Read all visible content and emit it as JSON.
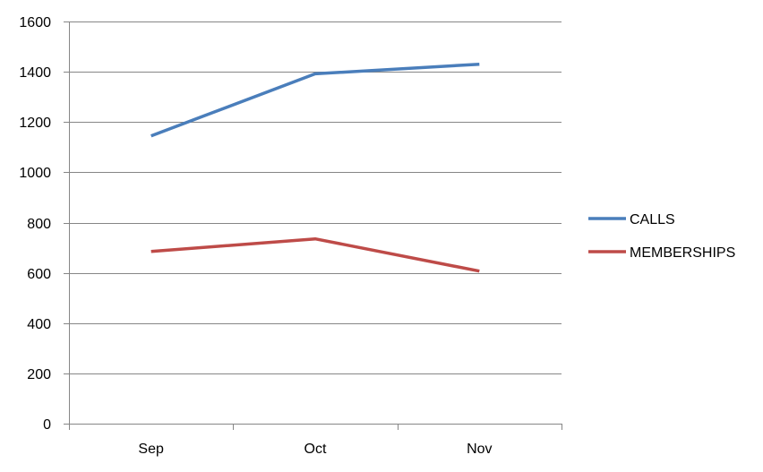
{
  "chart_data": {
    "type": "line",
    "categories": [
      "Sep",
      "Oct",
      "Nov"
    ],
    "series": [
      {
        "name": "CALLS",
        "values": [
          1145,
          1392,
          1430
        ],
        "color": "#4a7ebb"
      },
      {
        "name": "MEMBERSHIPS",
        "values": [
          685,
          735,
          607
        ],
        "color": "#be4b48"
      }
    ],
    "ylim": [
      0,
      1600
    ],
    "yticks": [
      0,
      200,
      400,
      600,
      800,
      1000,
      1200,
      1400,
      1600
    ],
    "grid": true,
    "legend_position": "right"
  },
  "colors": {
    "gridline": "#868686",
    "axis": "#868686"
  }
}
